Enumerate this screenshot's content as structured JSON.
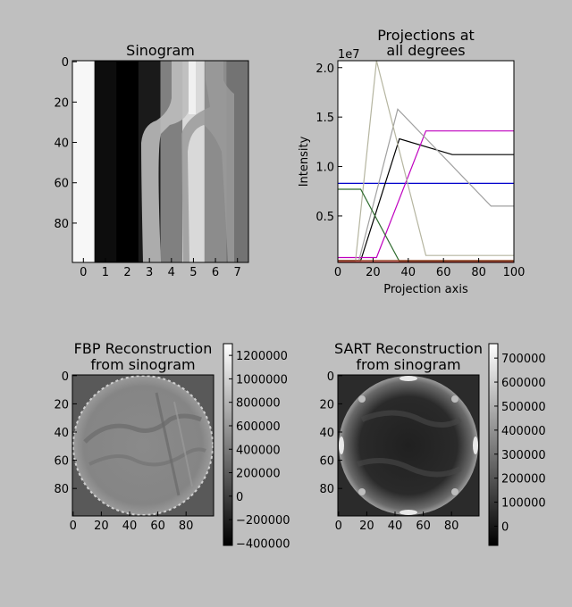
{
  "chart_data": [
    {
      "type": "heatmap",
      "title": "Sinogram",
      "colormap": "gray",
      "x_ticks": [
        "0",
        "1",
        "2",
        "3",
        "4",
        "5",
        "6",
        "7"
      ],
      "y_ticks": [
        "0",
        "20",
        "40",
        "60",
        "80"
      ],
      "xlim": [
        -0.5,
        7.5
      ],
      "ylim": [
        99.5,
        -0.5
      ],
      "columns": [
        {
          "label": "0",
          "value": 0.97
        },
        {
          "label": "1",
          "value": 0.05
        },
        {
          "label": "2",
          "value": 0.0
        },
        {
          "label": "3",
          "value": 0.1
        },
        {
          "label": "4",
          "value": 0.5
        },
        {
          "label": "5",
          "value": 0.85
        },
        {
          "label": "6",
          "value": 0.55
        },
        {
          "label": "7",
          "value": 0.45
        }
      ]
    },
    {
      "type": "line",
      "title_lines": [
        "Projections at",
        "all degrees"
      ],
      "xlabel": "Projection axis",
      "ylabel": "Intensity",
      "offset_text": "1e7",
      "xlim": [
        0,
        100
      ],
      "ylim": [
        0.03,
        2.07
      ],
      "x_ticks": [
        "0",
        "20",
        "40",
        "60",
        "80",
        "100"
      ],
      "y_ticks": [
        "0.5",
        "1.0",
        "1.5",
        "2.0"
      ],
      "y_tick_values": [
        0.5,
        1.0,
        1.5,
        2.0
      ],
      "series": [
        {
          "color": "#0000cc",
          "x": [
            0,
            100
          ],
          "y": [
            0.83,
            0.83
          ]
        },
        {
          "color": "#000000",
          "x": [
            0,
            13,
            35,
            65,
            100
          ],
          "y": [
            0.05,
            0.05,
            1.28,
            1.12,
            1.12
          ]
        },
        {
          "color": "#bf00bf",
          "x": [
            0,
            22,
            50,
            100
          ],
          "y": [
            0.08,
            0.08,
            1.36,
            1.36
          ]
        },
        {
          "color": "#a0a0a0",
          "x": [
            0,
            12,
            34,
            87,
            100
          ],
          "y": [
            0.05,
            0.05,
            1.58,
            0.6,
            0.6
          ]
        },
        {
          "color": "#b5b5a0",
          "x": [
            0,
            10,
            22,
            50,
            100
          ],
          "y": [
            0.04,
            0.04,
            2.07,
            0.1,
            0.1
          ]
        },
        {
          "color": "#2e6b2e",
          "x": [
            0,
            13,
            35,
            100
          ],
          "y": [
            0.77,
            0.77,
            0.04,
            0.04
          ]
        },
        {
          "color": "#8b3a1a",
          "x": [
            0,
            100
          ],
          "y": [
            0.05,
            0.05
          ]
        },
        {
          "color": "#cc2222",
          "x": [
            0,
            100
          ],
          "y": [
            0.035,
            0.035
          ]
        }
      ]
    },
    {
      "type": "heatmap",
      "title_lines": [
        "FBP Reconstruction",
        "from sinogram"
      ],
      "colormap": "gray",
      "x_ticks": [
        "0",
        "20",
        "40",
        "60",
        "80"
      ],
      "y_ticks": [
        "0",
        "20",
        "40",
        "60",
        "80"
      ],
      "colorbar_ticks": [
        "1200000",
        "1000000",
        "800000",
        "600000",
        "400000",
        "200000",
        "0",
        "−200000",
        "−400000"
      ],
      "colorbar_range": [
        -420000,
        1300000
      ]
    },
    {
      "type": "heatmap",
      "title_lines": [
        "SART Reconstruction",
        "from sinogram"
      ],
      "colormap": "gray",
      "x_ticks": [
        "0",
        "20",
        "40",
        "60",
        "80"
      ],
      "y_ticks": [
        "0",
        "20",
        "40",
        "60",
        "80"
      ],
      "colorbar_ticks": [
        "700000",
        "600000",
        "500000",
        "400000",
        "300000",
        "200000",
        "100000",
        "0"
      ],
      "colorbar_range": [
        -80000,
        760000
      ]
    }
  ]
}
